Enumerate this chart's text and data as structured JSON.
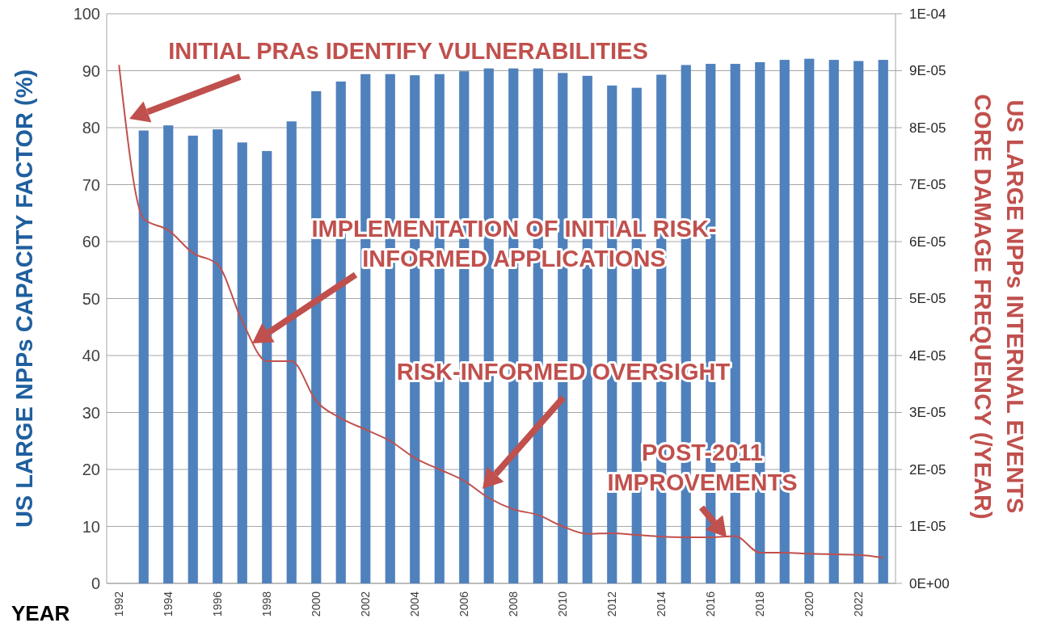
{
  "chart_data": {
    "type": "bar",
    "xlabel": "YEAR",
    "ylabel": "US LARGE NPPs CAPACITY FACTOR (%)",
    "y2label": "US LARGE NPPs INTERNAL EVENTS CORE DAMAGE FREQUENCY (/YEAR)",
    "categories": [
      "1992",
      null,
      "1994",
      null,
      "1996",
      null,
      "1998",
      null,
      "2000",
      null,
      "2002",
      null,
      "2004",
      null,
      "2006",
      null,
      "2008",
      null,
      "2010",
      null,
      "2012",
      null,
      "2014",
      null,
      "2016",
      null,
      "2018",
      null,
      "2020",
      null,
      "2022",
      null
    ],
    "series": [
      {
        "color": "#4f81bd",
        "values": [
          null,
          79.5,
          80.4,
          78.6,
          79.7,
          77.4,
          75.9,
          81.1,
          86.4,
          88.1,
          89.4,
          89.4,
          89.2,
          89.4,
          89.9,
          90.4,
          90.4,
          90.4,
          89.6,
          89.1,
          87.4,
          87.0,
          89.3,
          91.0,
          91.2,
          91.2,
          91.5,
          91.9,
          92.1,
          91.9,
          91.7,
          91.9
        ]
      },
      {
        "type": "line",
        "axis": "y2",
        "color": "#c0504d",
        "values": [
          9.1e-05,
          6.4e-05,
          6.2e-05,
          5.8e-05,
          5.6e-05,
          4.6e-05,
          3.9e-05,
          3.9e-05,
          3.2e-05,
          2.9e-05,
          2.7e-05,
          2.5e-05,
          2.2e-05,
          2e-05,
          1.8e-05,
          1.5e-05,
          1.3e-05,
          1.2e-05,
          1e-05,
          8.7e-06,
          8.8e-06,
          8.5e-06,
          8.2e-06,
          8.1e-06,
          8.1e-06,
          8.3e-06,
          5.4e-06,
          5.4e-06,
          5.2e-06,
          5.1e-06,
          5e-06,
          4.5e-06
        ]
      }
    ],
    "ylim": [
      0,
      100
    ],
    "yticks": [
      0,
      10,
      20,
      30,
      40,
      50,
      60,
      70,
      80,
      90,
      100
    ],
    "y2lim": [
      0,
      0.0001
    ],
    "y2ticks": [
      {
        "value": 0,
        "label": "0E+00"
      },
      {
        "value": 1e-05,
        "label": "1E-05"
      },
      {
        "value": 2e-05,
        "label": "2E-05"
      },
      {
        "value": 3e-05,
        "label": "3E-05"
      },
      {
        "value": 4e-05,
        "label": "4E-05"
      },
      {
        "value": 5e-05,
        "label": "5E-05"
      },
      {
        "value": 6e-05,
        "label": "6E-05"
      },
      {
        "value": 7e-05,
        "label": "7E-05"
      },
      {
        "value": 8e-05,
        "label": "8E-05"
      },
      {
        "value": 9e-05,
        "label": "9E-05"
      },
      {
        "value": 0.0001,
        "label": "1E-04"
      }
    ],
    "grid": "y",
    "marker": "none",
    "line_style": "solid",
    "annotations": [
      "INITIAL PRAs IDENTIFY VULNERABILITIES",
      "IMPLEMENTATION OF INITIAL RISK-\nINFORMED APPLICATIONS",
      "RISK-INFORMED OVERSIGHT",
      "POST-2011\nIMPROVEMENTS"
    ]
  }
}
